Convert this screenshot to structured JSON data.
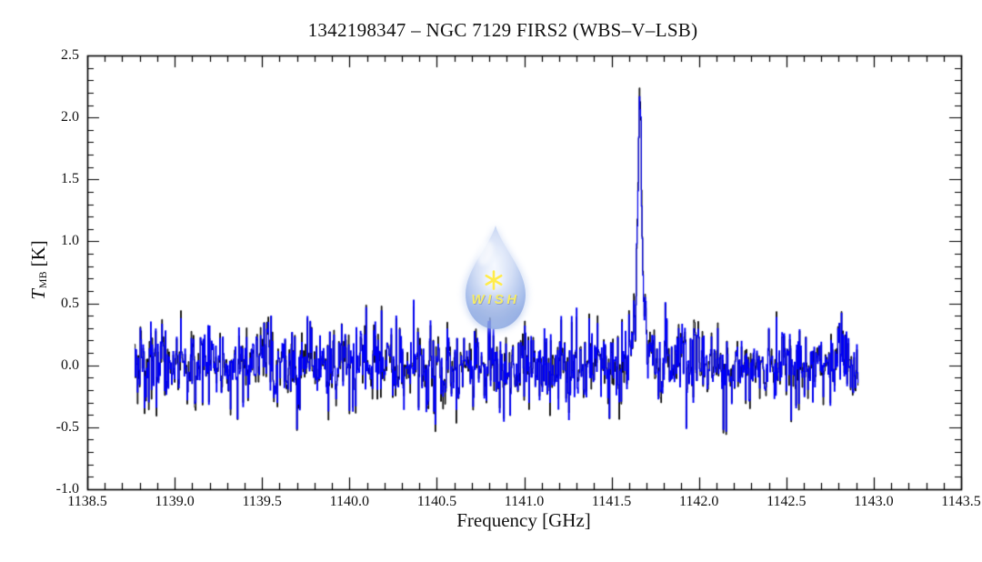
{
  "figure": {
    "title": "1342198347 – NGC 7129 FIRS2 (WBS–V–LSB)",
    "xlabel": "Frequency [GHz]",
    "ylabel": {
      "symbol": "T",
      "subscript": "MB",
      "unit": "[K]"
    },
    "background_color": "#ffffff"
  },
  "watermark": {
    "label": "WISH",
    "symbol": "six-point-star",
    "text_color": "#f3e94a",
    "star_color": "#ffe92a",
    "drop_color_light": "#f4f8ff",
    "drop_color_mid": "#ccd9f4",
    "drop_color_edge": "#7e9bdc"
  },
  "chart_data": {
    "type": "line",
    "subtype": "spectrum-histogram-steps",
    "title": "1342198347 – NGC 7129 FIRS2 (WBS–V–LSB)",
    "xlabel": "Frequency [GHz]",
    "ylabel": "T_MB [K]",
    "xlim": [
      1138.5,
      1143.5
    ],
    "ylim": [
      -1.0,
      2.5
    ],
    "x_tick_labels": [
      "1138.5",
      "1139.0",
      "1139.5",
      "1140.0",
      "1140.5",
      "1141.0",
      "1141.5",
      "1142.0",
      "1142.5",
      "1143.0",
      "1143.5"
    ],
    "y_tick_labels": [
      "-1.0",
      "-0.5",
      "0.0",
      "0.5",
      "1.0",
      "1.5",
      "2.0",
      "2.5"
    ],
    "x_major_step": 0.5,
    "x_minor_step": 0.1,
    "y_major_step": 0.5,
    "y_minor_step": 0.1,
    "grid": false,
    "frame": "box-with-inward-ticks",
    "legend": "none",
    "series": [
      {
        "name": "original-resolution spectrum (underlay)",
        "color": "#000000"
      },
      {
        "name": "spectrum",
        "color": "#0000f6"
      }
    ],
    "spectrum": {
      "x_start_ghz": 1138.77,
      "x_end_ghz": 1142.91,
      "channel_ghz": 0.004,
      "baseline_K": 0.0,
      "noise_rms_K": 0.165,
      "noise_spike_max_K": 0.85,
      "noise_bump": {
        "center_ghz": 1140.48,
        "sigma_ghz": 0.05,
        "factor": 1.3
      },
      "emission_line": {
        "center_ghz": 1141.66,
        "peak_K": 2.17,
        "narrow": {
          "amp_K": 1.7,
          "sigma_ghz": 0.0095
        },
        "wing": {
          "amp_K": 0.45,
          "sigma_ghz": 0.035
        }
      },
      "seed": 1342198347
    }
  }
}
